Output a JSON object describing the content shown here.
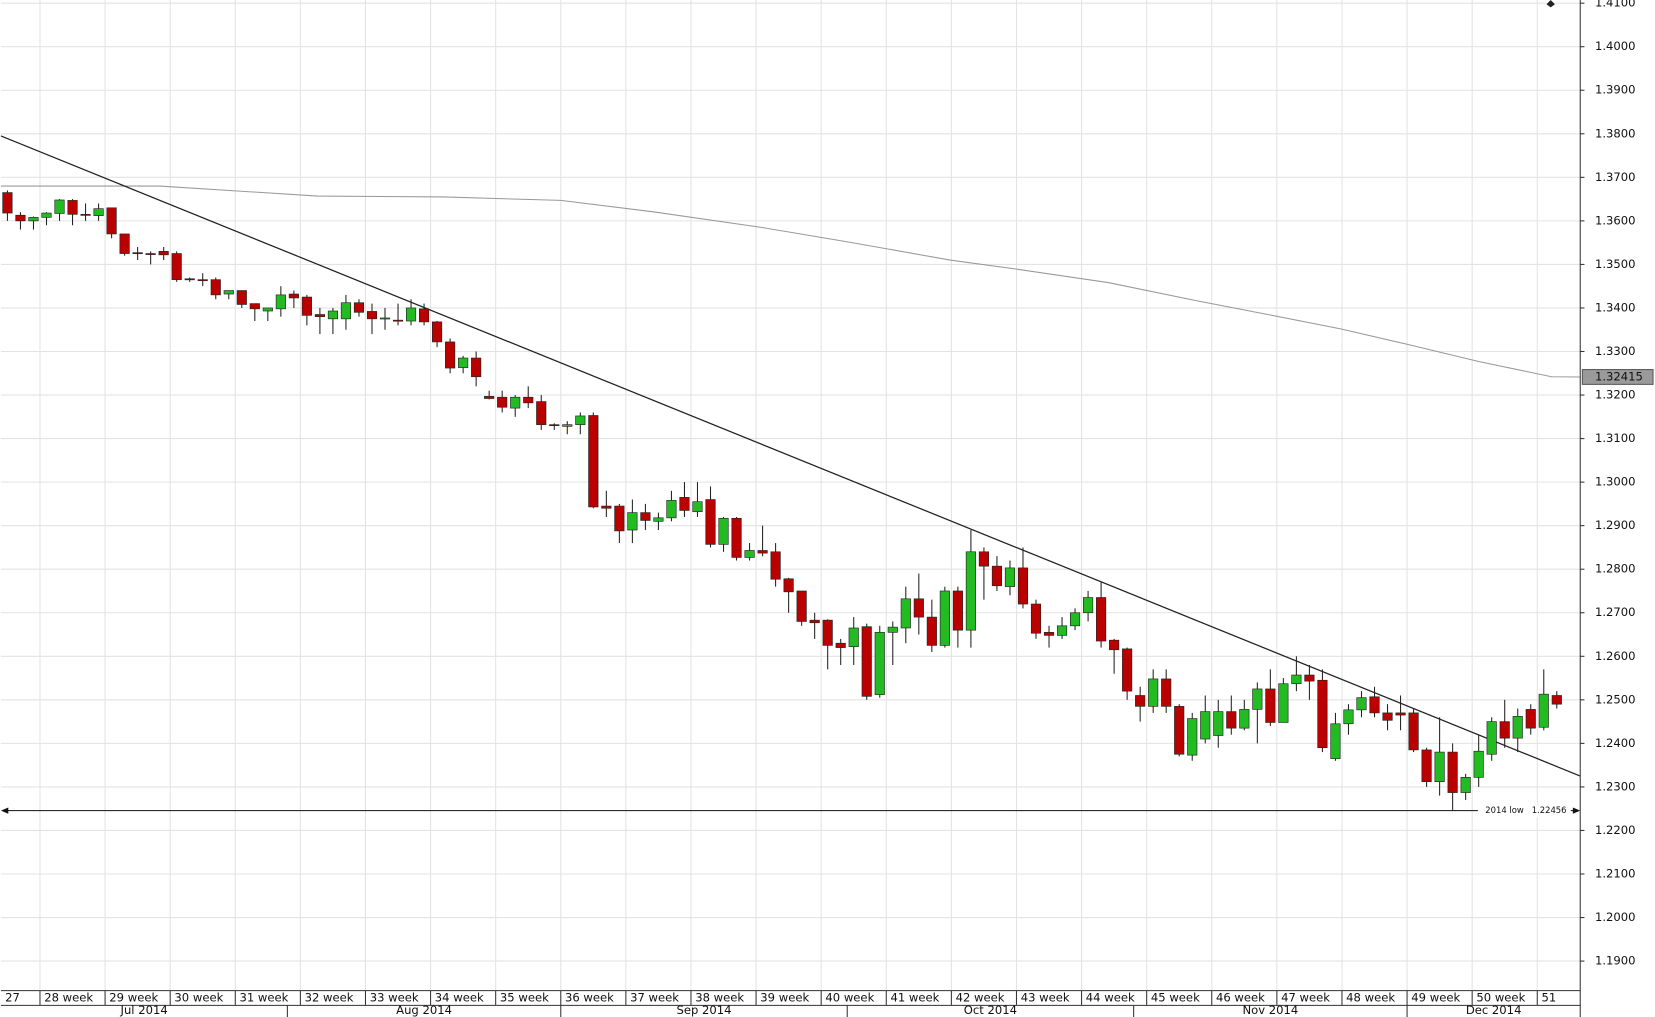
{
  "chart_data": {
    "type": "candlestick",
    "colors": {
      "up": "#22bb22",
      "down": "#bb0000",
      "moving_average": "#999999",
      "trendline": "#222222"
    },
    "grid": true,
    "xlim": [
      -0.5,
      120.8
    ],
    "ylim": [
      1.1832,
      1.41
    ],
    "yticks": [
      {
        "value": 1.19,
        "label": "1.1900"
      },
      {
        "value": 1.2,
        "label": "1.2000"
      },
      {
        "value": 1.21,
        "label": "1.2100"
      },
      {
        "value": 1.22,
        "label": "1.2200"
      },
      {
        "value": 1.23,
        "label": "1.2300"
      },
      {
        "value": 1.24,
        "label": "1.2400"
      },
      {
        "value": 1.25,
        "label": "1.2500"
      },
      {
        "value": 1.26,
        "label": "1.2600"
      },
      {
        "value": 1.27,
        "label": "1.2700"
      },
      {
        "value": 1.28,
        "label": "1.2800"
      },
      {
        "value": 1.29,
        "label": "1.2900"
      },
      {
        "value": 1.3,
        "label": "1.3000"
      },
      {
        "value": 1.31,
        "label": "1.3100"
      },
      {
        "value": 1.32,
        "label": "1.3200"
      },
      {
        "value": 1.33,
        "label": "1.3300"
      },
      {
        "value": 1.34,
        "label": "1.3400"
      },
      {
        "value": 1.35,
        "label": "1.3500"
      },
      {
        "value": 1.36,
        "label": "1.3600"
      },
      {
        "value": 1.37,
        "label": "1.3700"
      },
      {
        "value": 1.38,
        "label": "1.3800"
      },
      {
        "value": 1.39,
        "label": "1.3900"
      },
      {
        "value": 1.4,
        "label": "1.4000"
      },
      {
        "value": 1.41,
        "label": "1.4100"
      }
    ],
    "week_labels": [
      "27",
      "28 week",
      "29 week",
      "30 week",
      "31 week",
      "32 week",
      "33 week",
      "34 week",
      "35 week",
      "36 week",
      "37 week",
      "38 week",
      "39 week",
      "40 week",
      "41 week",
      "42 week",
      "43 week",
      "44 week",
      "45 week",
      "46 week",
      "47 week",
      "48 week",
      "49 week",
      "50 week",
      "51"
    ],
    "month_labels": [
      "Jul 2014",
      "Aug 2014",
      "Sep 2014",
      "Oct 2014",
      "Nov 2014",
      "Dec 2014"
    ],
    "open": [
      1.3665,
      1.3613,
      1.36,
      1.3608,
      1.3617,
      1.3647,
      1.3615,
      1.3612,
      1.363,
      1.357,
      1.3527,
      1.3525,
      1.353,
      1.3525,
      1.3467,
      1.3465,
      1.3465,
      1.3432,
      1.344,
      1.341,
      1.3393,
      1.3398,
      1.3432,
      1.3425,
      1.3385,
      1.3375,
      1.3375,
      1.3412,
      1.3392,
      1.3375,
      1.3372,
      1.337,
      1.3398,
      1.3368,
      1.3322,
      1.3263,
      1.3285,
      1.3197,
      1.3195,
      1.317,
      1.3195,
      1.3185,
      1.3132,
      1.3128,
      1.3132,
      1.3153,
      1.2945,
      1.2945,
      1.289,
      1.293,
      1.291,
      1.2918,
      1.2965,
      1.2932,
      1.296,
      1.2857,
      1.2917,
      1.2827,
      1.2843,
      1.284,
      1.2778,
      1.275,
      1.2683,
      1.2683,
      1.263,
      1.2622,
      1.2668,
      1.2512,
      1.2655,
      1.2665,
      1.2732,
      1.269,
      1.2625,
      1.275,
      1.266,
      1.284,
      1.2807,
      1.276,
      1.2803,
      1.272,
      1.2655,
      1.2648,
      1.267,
      1.27,
      1.2735,
      1.2637,
      1.2617,
      1.251,
      1.2485,
      1.2548,
      1.2485,
      1.2373,
      1.241,
      1.2418,
      1.2473,
      1.2435,
      1.2478,
      1.2525,
      1.2448,
      1.2537,
      1.2557,
      1.2545,
      1.2365,
      1.2445,
      1.2477,
      1.2507,
      1.247,
      1.247,
      1.247,
      1.2385,
      1.2312,
      1.238,
      1.2287,
      1.2322,
      1.2375,
      1.245,
      1.2412,
      1.2478,
      1.2437,
      1.251
    ],
    "high": [
      1.367,
      1.362,
      1.361,
      1.362,
      1.365,
      1.365,
      1.364,
      1.364,
      1.363,
      1.357,
      1.354,
      1.353,
      1.354,
      1.353,
      1.347,
      1.348,
      1.347,
      1.344,
      1.344,
      1.341,
      1.34,
      1.345,
      1.344,
      1.343,
      1.34,
      1.34,
      1.343,
      1.342,
      1.341,
      1.34,
      1.341,
      1.342,
      1.341,
      1.337,
      1.333,
      1.329,
      1.33,
      1.321,
      1.321,
      1.32,
      1.322,
      1.32,
      1.3135,
      1.314,
      1.316,
      1.316,
      1.298,
      1.295,
      1.296,
      1.295,
      1.293,
      1.298,
      1.3,
      1.3,
      1.299,
      1.292,
      1.292,
      1.286,
      1.29,
      1.286,
      1.278,
      1.275,
      1.27,
      1.2685,
      1.264,
      1.269,
      1.2675,
      1.267,
      1.268,
      1.276,
      1.279,
      1.273,
      1.276,
      1.276,
      1.289,
      1.285,
      1.283,
      1.282,
      1.285,
      1.273,
      1.267,
      1.269,
      1.271,
      1.275,
      1.277,
      1.264,
      1.262,
      1.253,
      1.257,
      1.257,
      1.249,
      1.247,
      1.251,
      1.25,
      1.251,
      1.25,
      1.254,
      1.257,
      1.255,
      1.26,
      1.258,
      1.257,
      1.247,
      1.249,
      1.252,
      1.253,
      1.249,
      1.251,
      1.248,
      1.239,
      1.246,
      1.24,
      1.233,
      1.242,
      1.246,
      1.25,
      1.248,
      1.249,
      1.257,
      1.252
    ],
    "low": [
      1.36,
      1.358,
      1.358,
      1.359,
      1.36,
      1.359,
      1.36,
      1.36,
      1.356,
      1.352,
      1.351,
      1.35,
      1.351,
      1.346,
      1.346,
      1.345,
      1.342,
      1.342,
      1.34,
      1.337,
      1.337,
      1.338,
      1.34,
      1.336,
      1.334,
      1.334,
      1.335,
      1.338,
      1.334,
      1.335,
      1.336,
      1.336,
      1.336,
      1.331,
      1.325,
      1.325,
      1.322,
      1.319,
      1.316,
      1.315,
      1.317,
      1.312,
      1.312,
      1.311,
      1.311,
      1.294,
      1.292,
      1.286,
      1.286,
      1.289,
      1.289,
      1.291,
      1.292,
      1.292,
      1.285,
      1.284,
      1.282,
      1.282,
      1.283,
      1.276,
      1.27,
      1.267,
      1.264,
      1.257,
      1.258,
      1.258,
      1.25,
      1.2505,
      1.258,
      1.263,
      1.265,
      1.261,
      1.262,
      1.262,
      1.262,
      1.273,
      1.275,
      1.274,
      1.271,
      1.264,
      1.262,
      1.264,
      1.266,
      1.268,
      1.262,
      1.256,
      1.25,
      1.245,
      1.247,
      1.247,
      1.237,
      1.236,
      1.24,
      1.239,
      1.242,
      1.243,
      1.24,
      1.244,
      1.245,
      1.252,
      1.25,
      1.238,
      1.236,
      1.242,
      1.246,
      1.246,
      1.243,
      1.243,
      1.238,
      1.23,
      1.228,
      1.22456,
      1.227,
      1.23,
      1.236,
      1.239,
      1.238,
      1.242,
      1.243,
      1.248
    ],
    "close": [
      1.3618,
      1.36,
      1.3608,
      1.3618,
      1.3648,
      1.3615,
      1.3613,
      1.3628,
      1.357,
      1.3525,
      1.3525,
      1.3523,
      1.3522,
      1.3465,
      1.3465,
      1.3463,
      1.343,
      1.344,
      1.3408,
      1.3398,
      1.34,
      1.343,
      1.3423,
      1.3383,
      1.338,
      1.3393,
      1.3412,
      1.339,
      1.3375,
      1.3377,
      1.337,
      1.34,
      1.3368,
      1.3322,
      1.3262,
      1.3285,
      1.3242,
      1.3192,
      1.3172,
      1.3195,
      1.3182,
      1.3132,
      1.313,
      1.3132,
      1.3152,
      1.2943,
      1.294,
      1.2888,
      1.293,
      1.2912,
      1.2918,
      1.2958,
      1.2935,
      1.2955,
      1.2857,
      1.2917,
      1.2827,
      1.2843,
      1.2837,
      1.2777,
      1.2748,
      1.268,
      1.2677,
      1.2625,
      1.262,
      1.2665,
      1.2508,
      1.2655,
      1.2667,
      1.2732,
      1.269,
      1.2625,
      1.275,
      1.266,
      1.284,
      1.2807,
      1.2762,
      1.2803,
      1.272,
      1.2653,
      1.2648,
      1.267,
      1.27,
      1.2735,
      1.2635,
      1.2615,
      1.252,
      1.2485,
      1.2548,
      1.2485,
      1.2375,
      1.2457,
      1.2473,
      1.2473,
      1.2435,
      1.2478,
      1.2525,
      1.2448,
      1.2537,
      1.2557,
      1.2543,
      1.239,
      1.2445,
      1.2477,
      1.2505,
      1.247,
      1.2453,
      1.2465,
      1.2385,
      1.2312,
      1.238,
      1.2287,
      1.2322,
      1.2382,
      1.245,
      1.2412,
      1.2462,
      1.2435,
      1.2513,
      1.249
    ],
    "moving_average": {
      "x": [
        -0.5,
        11.7,
        23.8,
        33.5,
        42.5,
        49.8,
        57.9,
        64.3,
        72.4,
        77.3,
        84.6,
        91.1,
        96.8,
        102.4,
        107.3,
        113,
        118.6,
        120.8
      ],
      "values": [
        1.368,
        1.368,
        1.3657,
        1.3655,
        1.3647,
        1.362,
        1.3585,
        1.3553,
        1.351,
        1.349,
        1.3458,
        1.3418,
        1.3385,
        1.3352,
        1.3318,
        1.3277,
        1.3242,
        1.32415
      ]
    },
    "trendline": {
      "x": [
        -0.5,
        120.8
      ],
      "values": [
        1.3795,
        1.2325
      ]
    },
    "last_value": 1.32415,
    "low_line": {
      "label": "2014 low",
      "value": 1.22456
    }
  }
}
